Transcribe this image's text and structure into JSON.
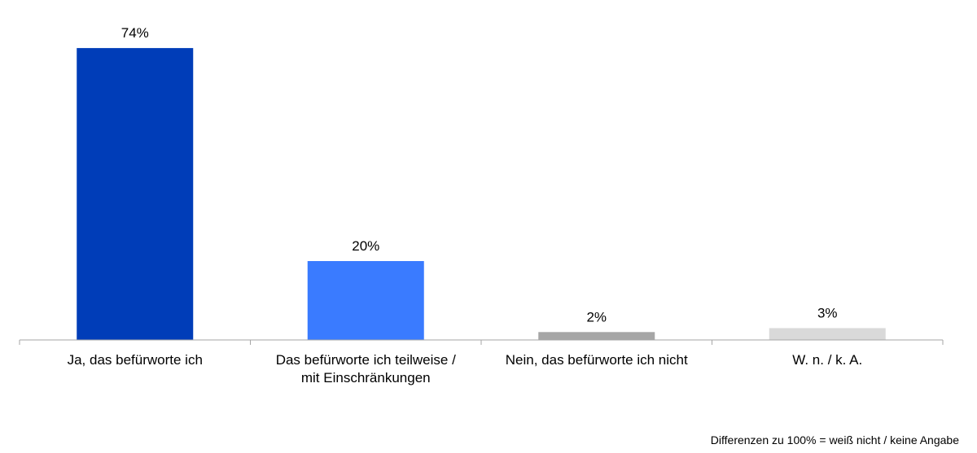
{
  "chart_data": {
    "type": "bar",
    "categories": [
      [
        "Ja, das befürworte ich"
      ],
      [
        "Das befürworte ich teilweise /",
        "mit Einschränkungen"
      ],
      [
        "Nein, das befürworte ich nicht"
      ],
      [
        "W. n. / k. A."
      ]
    ],
    "values": [
      74,
      20,
      2,
      3
    ],
    "value_labels": [
      "74%",
      "20%",
      "2%",
      "3%"
    ],
    "colors": [
      "#003DB8",
      "#3A7BFF",
      "#A6A6A6",
      "#D9D9D9"
    ],
    "ylim": [
      0,
      80
    ],
    "grid": false,
    "legend": "none"
  },
  "footnote": "Differenzen zu 100% = weiß nicht / keine Angabe"
}
